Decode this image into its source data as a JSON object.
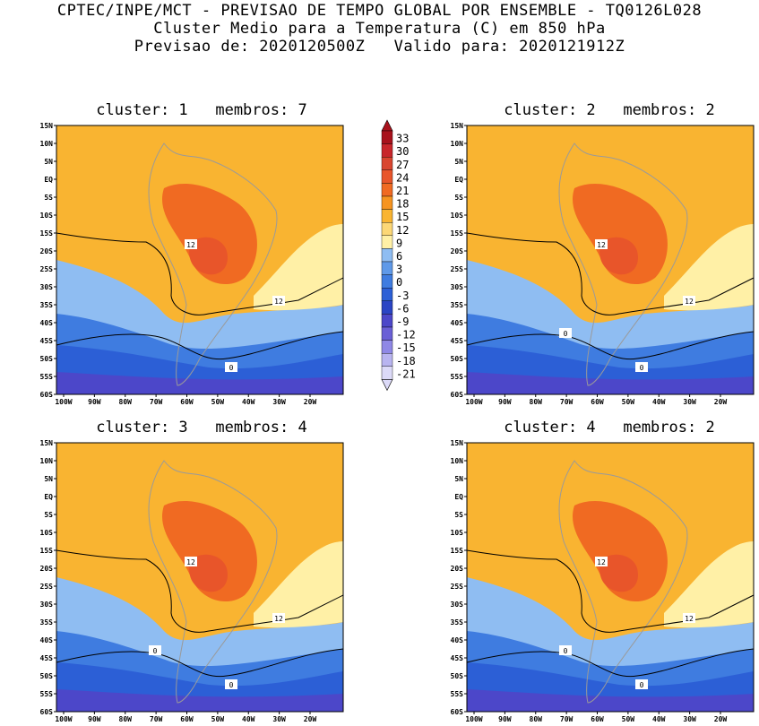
{
  "header": {
    "line1": "CPTEC/INPE/MCT - PREVISAO DE TEMPO GLOBAL POR ENSEMBLE - TQ0126L028",
    "line2": "Cluster Medio para a Temperatura (C) em 850 hPa",
    "line3": "Previsao de: 2020120500Z   Valido para: 2020121912Z"
  },
  "axes": {
    "lat_ticks": [
      "15N",
      "10N",
      "5N",
      "EQ",
      "5S",
      "10S",
      "15S",
      "20S",
      "25S",
      "30S",
      "35S",
      "40S",
      "45S",
      "50S",
      "55S",
      "60S"
    ],
    "lon_ticks": [
      "100W",
      "90W",
      "80W",
      "70W",
      "60W",
      "50W",
      "40W",
      "30W",
      "20W"
    ]
  },
  "colorbar": {
    "labels": [
      "33",
      "30",
      "27",
      "24",
      "21",
      "18",
      "15",
      "12",
      "9",
      "6",
      "3",
      "0",
      "-3",
      "-6",
      "-9",
      "-12",
      "-15",
      "-18",
      "-21"
    ],
    "colors": {
      "c33": "#a8121c",
      "c30": "#c8262b",
      "c27": "#d9452f",
      "c24": "#e8552a",
      "c21": "#f06a22",
      "c18": "#f69420",
      "c15": "#f9b431",
      "c12": "#fcd776",
      "c9": "#fff0a6",
      "c6": "#8fbdf2",
      "c3": "#5f99e8",
      "c0": "#3f7ce0",
      "cm3": "#2c5fd6",
      "cm6": "#2a44c4",
      "cm9": "#4c47c9",
      "cm12": "#6a5fd6",
      "cm15": "#8f88e6",
      "cm18": "#b8b4f0",
      "cm21": "#dcdaf8"
    }
  },
  "panels": [
    {
      "title": "cluster: 1   membros: 7",
      "contour_labels": [
        "12",
        "12",
        "0"
      ]
    },
    {
      "title": "cluster: 2   membros: 2",
      "contour_labels": [
        "12",
        "12",
        "0",
        "0"
      ]
    },
    {
      "title": "cluster: 3   membros: 4",
      "contour_labels": [
        "12",
        "12",
        "0",
        "0"
      ]
    },
    {
      "title": "cluster: 4   membros: 2",
      "contour_labels": [
        "12",
        "12",
        "0",
        "0"
      ]
    }
  ]
}
